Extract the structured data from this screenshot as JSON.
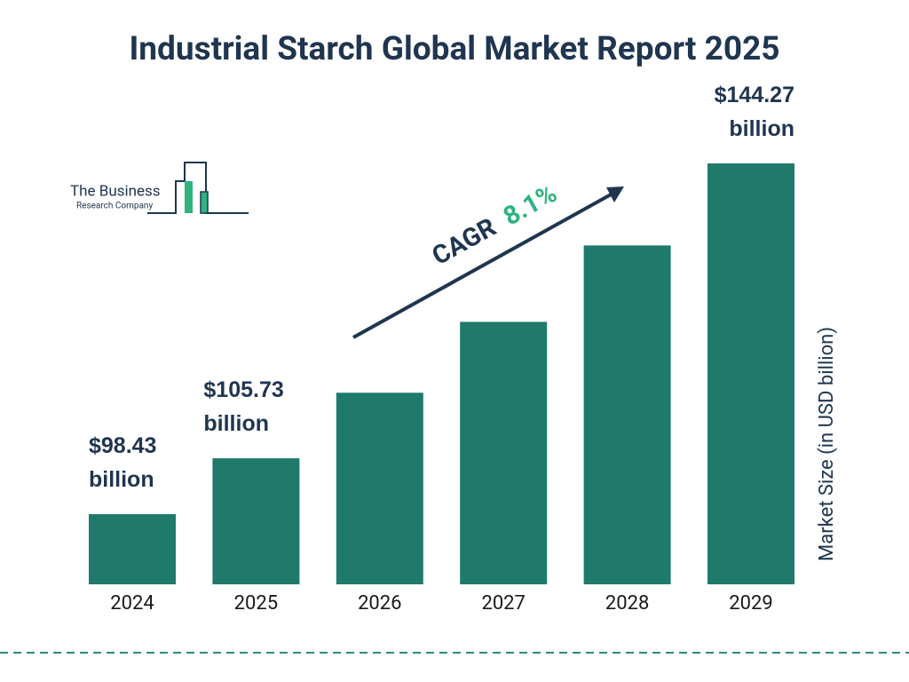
{
  "chart_data": {
    "type": "bar",
    "title": "Industrial Starch Global Market Report 2025",
    "categories": [
      "2024",
      "2025",
      "2026",
      "2027",
      "2028",
      "2029"
    ],
    "values": [
      98.43,
      105.73,
      114.3,
      123.56,
      133.55,
      144.27
    ],
    "value_labels": [
      "$98.43 billion",
      "$105.73 billion",
      null,
      null,
      null,
      "$144.27 billion"
    ],
    "color": "#1f7a6c",
    "y_axis_label": "Market Size (in USD billion)",
    "annotation": {
      "label": "CAGR",
      "value": "8.1%",
      "value_color": "#2fb380"
    },
    "logo": {
      "line1": "The Business",
      "line2": "Research Company"
    }
  }
}
